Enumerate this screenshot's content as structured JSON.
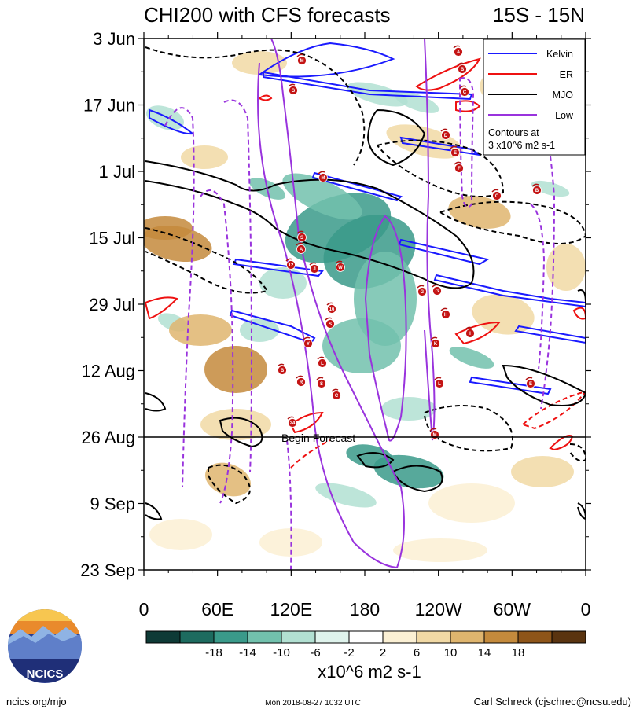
{
  "chart_data": {
    "type": "heatmap",
    "title": "CHI200 with CFS forecasts",
    "subtitle": "15S - 15N",
    "x_tick_labels": [
      "0",
      "60E",
      "120E",
      "180",
      "120W",
      "60W",
      "0"
    ],
    "y_tick_labels": [
      "3 Jun",
      "17 Jun",
      "1 Jul",
      "15 Jul",
      "29 Jul",
      "12 Aug",
      "26 Aug",
      "9 Sep",
      "23 Sep"
    ],
    "x_range_deg_east": [
      0,
      360
    ],
    "y_range": [
      "3 Jun",
      "23 Sep"
    ],
    "forecast_line_date": "26 Aug",
    "forecast_label": "Begin Forecast",
    "legend": {
      "items": [
        {
          "name": "Kelvin",
          "color": "#1a1aff"
        },
        {
          "name": "ER",
          "color": "#ee1111"
        },
        {
          "name": "MJO",
          "color": "#000000"
        },
        {
          "name": "Low",
          "color": "#9933dd"
        }
      ],
      "note_line1": "Contours at",
      "note_line2": "3 x10^6 m2 s-1",
      "placement": "top-right"
    },
    "colorbar": {
      "tick_labels": [
        "-18",
        "-14",
        "-10",
        "-6",
        "-2",
        "2",
        "6",
        "10",
        "14",
        "18"
      ],
      "colors": [
        "#0e3a36",
        "#1d6b5f",
        "#3a9a8a",
        "#72c1ad",
        "#b2e0d2",
        "#dff3ec",
        "#ffffff",
        "#fbf0d4",
        "#f1d9a5",
        "#dfb56e",
        "#c48a3c",
        "#8e5519",
        "#5a3410"
      ],
      "units": "x10^6 m2 s-1"
    },
    "storm_markers": [
      "M",
      "A",
      "B",
      "G",
      "C",
      "D",
      "E",
      "F",
      "M",
      "C",
      "B",
      "S",
      "A",
      "12",
      "J",
      "W",
      "16",
      "S",
      "G",
      "G",
      "H",
      "Y",
      "L",
      "I",
      "K",
      "B",
      "R",
      "S",
      "C",
      "L",
      "E",
      "24",
      "M"
    ]
  },
  "footer": {
    "logo_text": "NCICS",
    "url": "ncics.org/mjo",
    "timestamp": "Mon 2018-08-27 1032 UTC",
    "credit": "Carl Schreck (cjschrec@ncsu.edu)"
  }
}
